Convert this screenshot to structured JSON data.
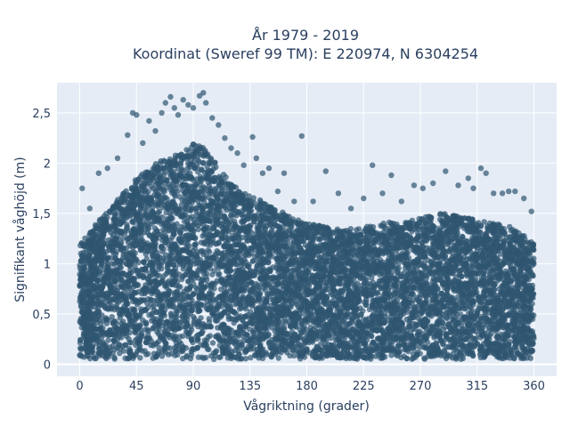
{
  "chart_data": {
    "type": "scatter",
    "title_line1": "År 1979 - 2019",
    "title_line2": "Koordinat (Sweref 99 TM): E 220974, N 6304254",
    "xlabel": "Vågriktning (grader)",
    "ylabel": "Signifikant våghöjd (m)",
    "xlim": [
      -18,
      378
    ],
    "ylim": [
      -0.12,
      2.8
    ],
    "xticks": [
      0,
      45,
      90,
      135,
      180,
      225,
      270,
      315,
      360
    ],
    "xtick_labels": [
      "0",
      "45",
      "90",
      "135",
      "180",
      "225",
      "270",
      "315",
      "360"
    ],
    "yticks": [
      0,
      0.5,
      1,
      1.5,
      2,
      2.5
    ],
    "ytick_labels": [
      "0",
      "0,5",
      "1",
      "1,5",
      "2",
      "2,5"
    ],
    "grid": true,
    "colors": {
      "marker": "#2f5570",
      "plot_bg": "#e5ecf6",
      "grid": "#ffffff"
    },
    "envelope": {
      "x": [
        0,
        10,
        20,
        30,
        40,
        50,
        60,
        70,
        80,
        90,
        100,
        110,
        120,
        130,
        140,
        150,
        160,
        170,
        180,
        190,
        200,
        210,
        220,
        230,
        240,
        250,
        260,
        270,
        280,
        290,
        300,
        310,
        320,
        330,
        340,
        350,
        360
      ],
      "y": [
        1.2,
        1.35,
        1.5,
        1.65,
        1.8,
        1.9,
        2.0,
        2.05,
        2.1,
        2.2,
        2.15,
        1.95,
        1.8,
        1.7,
        1.65,
        1.6,
        1.52,
        1.45,
        1.4,
        1.38,
        1.35,
        1.35,
        1.35,
        1.38,
        1.4,
        1.42,
        1.42,
        1.45,
        1.5,
        1.5,
        1.48,
        1.45,
        1.42,
        1.4,
        1.38,
        1.3,
        1.2
      ],
      "min_y": 0.05
    },
    "outliers": [
      {
        "x": 2,
        "y": 1.75
      },
      {
        "x": 8,
        "y": 1.55
      },
      {
        "x": 15,
        "y": 1.9
      },
      {
        "x": 22,
        "y": 1.95
      },
      {
        "x": 30,
        "y": 2.05
      },
      {
        "x": 38,
        "y": 2.28
      },
      {
        "x": 42,
        "y": 2.5
      },
      {
        "x": 45,
        "y": 2.48
      },
      {
        "x": 50,
        "y": 2.2
      },
      {
        "x": 55,
        "y": 2.42
      },
      {
        "x": 60,
        "y": 2.32
      },
      {
        "x": 65,
        "y": 2.5
      },
      {
        "x": 68,
        "y": 2.6
      },
      {
        "x": 72,
        "y": 2.66
      },
      {
        "x": 75,
        "y": 2.55
      },
      {
        "x": 78,
        "y": 2.48
      },
      {
        "x": 82,
        "y": 2.63
      },
      {
        "x": 86,
        "y": 2.58
      },
      {
        "x": 90,
        "y": 2.55
      },
      {
        "x": 95,
        "y": 2.67
      },
      {
        "x": 98,
        "y": 2.7
      },
      {
        "x": 100,
        "y": 2.6
      },
      {
        "x": 105,
        "y": 2.45
      },
      {
        "x": 110,
        "y": 2.38
      },
      {
        "x": 115,
        "y": 2.25
      },
      {
        "x": 120,
        "y": 2.15
      },
      {
        "x": 125,
        "y": 2.1
      },
      {
        "x": 130,
        "y": 1.98
      },
      {
        "x": 137,
        "y": 2.26
      },
      {
        "x": 140,
        "y": 2.05
      },
      {
        "x": 145,
        "y": 1.9
      },
      {
        "x": 150,
        "y": 1.95
      },
      {
        "x": 157,
        "y": 1.72
      },
      {
        "x": 162,
        "y": 1.9
      },
      {
        "x": 170,
        "y": 1.62
      },
      {
        "x": 176,
        "y": 2.27
      },
      {
        "x": 185,
        "y": 1.62
      },
      {
        "x": 195,
        "y": 1.92
      },
      {
        "x": 205,
        "y": 1.7
      },
      {
        "x": 215,
        "y": 1.55
      },
      {
        "x": 225,
        "y": 1.65
      },
      {
        "x": 232,
        "y": 1.98
      },
      {
        "x": 240,
        "y": 1.7
      },
      {
        "x": 247,
        "y": 1.88
      },
      {
        "x": 255,
        "y": 1.62
      },
      {
        "x": 265,
        "y": 1.78
      },
      {
        "x": 272,
        "y": 1.75
      },
      {
        "x": 280,
        "y": 1.8
      },
      {
        "x": 290,
        "y": 1.92
      },
      {
        "x": 300,
        "y": 1.78
      },
      {
        "x": 308,
        "y": 1.85
      },
      {
        "x": 312,
        "y": 1.75
      },
      {
        "x": 318,
        "y": 1.95
      },
      {
        "x": 322,
        "y": 1.9
      },
      {
        "x": 328,
        "y": 1.7
      },
      {
        "x": 335,
        "y": 1.7
      },
      {
        "x": 340,
        "y": 1.72
      },
      {
        "x": 345,
        "y": 1.72
      },
      {
        "x": 352,
        "y": 1.65
      },
      {
        "x": 358,
        "y": 1.52
      }
    ]
  }
}
